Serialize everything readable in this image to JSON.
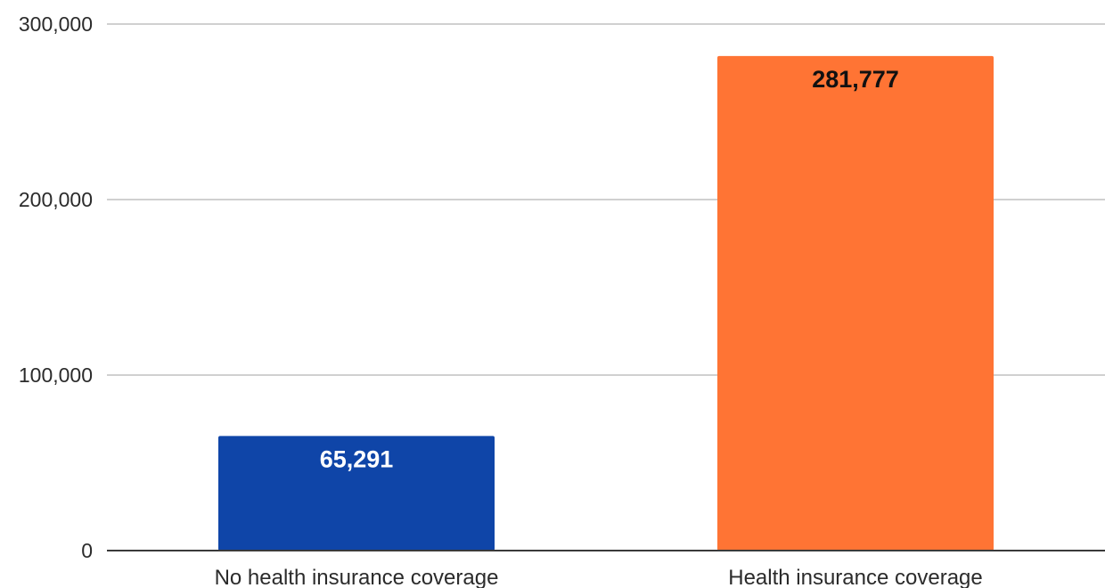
{
  "chart_data": {
    "type": "bar",
    "categories": [
      "No health insurance coverage",
      "Health insurance coverage"
    ],
    "values": [
      65291,
      281777
    ],
    "data_labels": [
      "65,291",
      "281,777"
    ],
    "bar_colors": [
      "#0f45a8",
      "#ff7434"
    ],
    "data_label_colors": [
      "#ffffff",
      "#111111"
    ],
    "y_ticks": [
      0,
      100000,
      200000,
      300000
    ],
    "y_tick_labels": [
      "0",
      "100,000",
      "200,000",
      "300,000"
    ],
    "ylim": [
      0,
      300000
    ],
    "grid": true,
    "legend": "none",
    "title": "",
    "xlabel": "",
    "ylabel": ""
  }
}
